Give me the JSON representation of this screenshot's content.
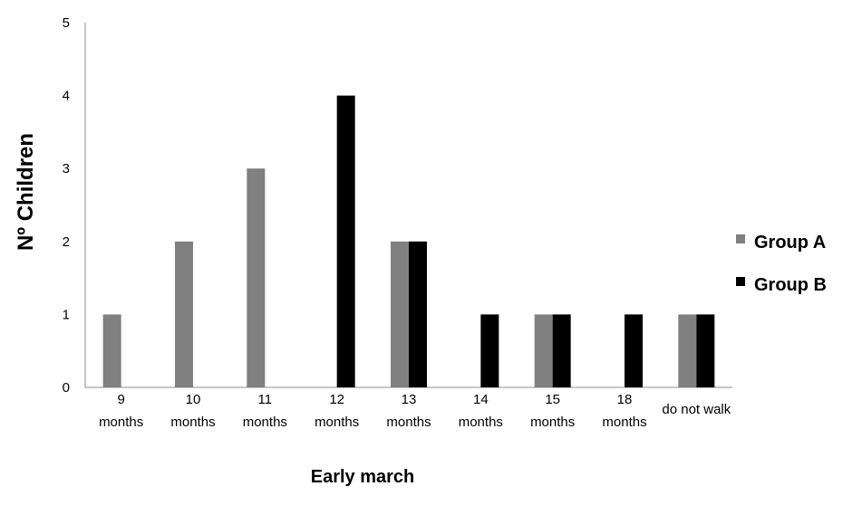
{
  "chart_data": {
    "type": "bar",
    "title": "",
    "xlabel": "Early march",
    "ylabel": "Nº Children",
    "ylim": [
      0,
      5
    ],
    "yticks": [
      "0",
      "1",
      "2",
      "3",
      "4",
      "5"
    ],
    "categories": [
      [
        "9",
        "months"
      ],
      [
        "10",
        "months"
      ],
      [
        "11",
        "months"
      ],
      [
        "12",
        "months"
      ],
      [
        "13",
        "months"
      ],
      [
        "14",
        "months"
      ],
      [
        "15",
        "months"
      ],
      [
        "18",
        "months"
      ],
      [
        "do not walk"
      ]
    ],
    "series": [
      {
        "name": "Group A",
        "color": "#808080",
        "values": [
          1,
          2,
          3,
          0,
          2,
          0,
          1,
          0,
          1
        ]
      },
      {
        "name": "Group B",
        "color": "#000000",
        "values": [
          0,
          0,
          0,
          4,
          2,
          1,
          1,
          1,
          1
        ]
      }
    ],
    "grid": false,
    "legend_position": "right"
  }
}
